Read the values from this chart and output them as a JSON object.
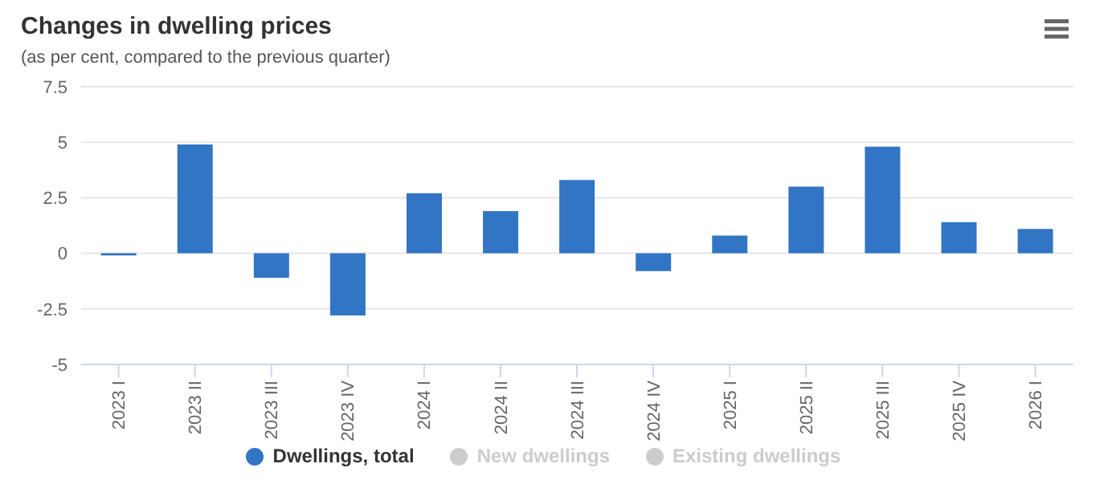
{
  "chart_data": {
    "type": "bar",
    "title": "Changes in dwelling prices",
    "subtitle": "(as per cent, compared to the previous quarter)",
    "categories": [
      "2023 I",
      "2023 II",
      "2023 III",
      "2023 IV",
      "2024 I",
      "2024 II",
      "2024 III",
      "2024 IV",
      "2025 I",
      "2025 II",
      "2025 III",
      "2025 IV",
      "2026 I"
    ],
    "series": [
      {
        "name": "Dwellings, total",
        "color": "#3275c4",
        "values": [
          -0.1,
          4.9,
          -1.1,
          -2.8,
          2.7,
          1.9,
          3.3,
          -0.8,
          0.8,
          3.0,
          4.8,
          1.4,
          1.1
        ]
      },
      {
        "name": "New dwellings",
        "color": "#cccccc",
        "values": [
          null,
          null,
          null,
          null,
          null,
          null,
          null,
          null,
          null,
          null,
          null,
          null,
          null
        ]
      },
      {
        "name": "Existing dwellings",
        "color": "#cccccc",
        "values": [
          null,
          null,
          null,
          null,
          null,
          null,
          null,
          null,
          null,
          null,
          null,
          null,
          null
        ]
      }
    ],
    "ylim": [
      -5,
      7.5
    ],
    "yticks": [
      -5,
      -2.5,
      0,
      2.5,
      5,
      7.5
    ],
    "grid": "y",
    "legend": "bottom"
  }
}
